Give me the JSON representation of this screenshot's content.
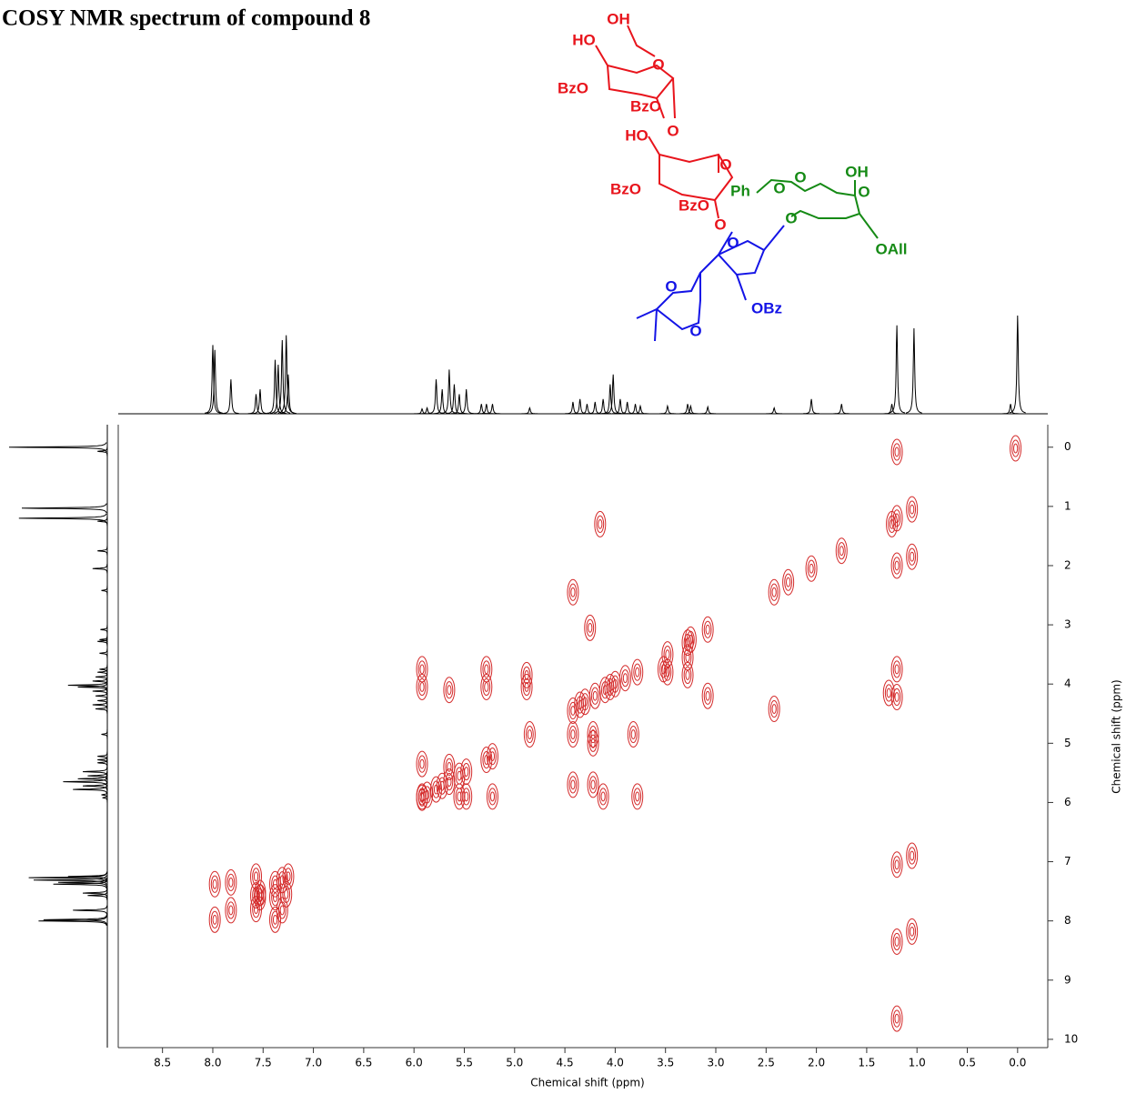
{
  "title": "COSY NMR spectrum of compound 8",
  "structure": {
    "labels": [
      {
        "text": "OH",
        "color": "#e8141c"
      },
      {
        "text": "HO",
        "color": "#e8141c"
      },
      {
        "text": "O",
        "color": "#e8141c"
      },
      {
        "text": "BzO",
        "color": "#e8141c"
      },
      {
        "text": "BzO",
        "color": "#e8141c"
      },
      {
        "text": "O",
        "color": "#e8141c"
      },
      {
        "text": "HO",
        "color": "#e8141c"
      },
      {
        "text": "O",
        "color": "#e8141c"
      },
      {
        "text": "BzO",
        "color": "#e8141c"
      },
      {
        "text": "BzO",
        "color": "#e8141c"
      },
      {
        "text": "O",
        "color": "#e8141c"
      },
      {
        "text": "Ph",
        "color": "#158a15"
      },
      {
        "text": "O",
        "color": "#158a15"
      },
      {
        "text": "O",
        "color": "#158a15"
      },
      {
        "text": "OH",
        "color": "#158a15"
      },
      {
        "text": "O",
        "color": "#158a15"
      },
      {
        "text": "O",
        "color": "#158a15"
      },
      {
        "text": "OAll",
        "color": "#158a15"
      },
      {
        "text": "O",
        "color": "#1414e6"
      },
      {
        "text": "O",
        "color": "#1414e6"
      },
      {
        "text": "O",
        "color": "#1414e6"
      },
      {
        "text": "OBz",
        "color": "#1414e6"
      }
    ]
  },
  "chart_data": [
    {
      "type": "spectrum",
      "color": "#000000",
      "ylim": [
        0,
        100
      ],
      "x": [
        8.0,
        7.98,
        7.82,
        7.57,
        7.53,
        7.38,
        7.35,
        7.31,
        7.27,
        7.25,
        5.92,
        5.87,
        5.78,
        5.72,
        5.65,
        5.6,
        5.55,
        5.48,
        5.33,
        5.28,
        5.22,
        4.85,
        4.42,
        4.35,
        4.28,
        4.2,
        4.12,
        4.05,
        4.02,
        3.95,
        3.88,
        3.8,
        3.75,
        3.48,
        3.28,
        3.25,
        3.08,
        2.42,
        2.05,
        1.75,
        1.25,
        1.2,
        1.03,
        0.07,
        0.0
      ],
      "values": [
        70,
        65,
        35,
        20,
        25,
        55,
        50,
        75,
        80,
        40,
        5,
        6,
        35,
        25,
        45,
        30,
        20,
        25,
        10,
        10,
        10,
        6,
        12,
        15,
        10,
        12,
        15,
        30,
        40,
        15,
        12,
        10,
        8,
        8,
        10,
        8,
        7,
        6,
        15,
        10,
        10,
        90,
        87,
        10,
        100
      ]
    },
    {
      "type": "scatter",
      "color": "#d42a2a",
      "xlabel": "Chemical shift (ppm)",
      "ylabel": "Chemical shift (ppm)",
      "xlim": [
        8.94,
        -0.3
      ],
      "ylim": [
        -0.38,
        10.14
      ],
      "xticks": [
        8.5,
        {
          "value": 8,
          "label": "8.0"
        },
        7.5,
        {
          "value": 7,
          "label": "7.0"
        },
        6.5,
        {
          "value": 6,
          "label": "6.0"
        },
        5.5,
        {
          "value": 5,
          "label": "5.0"
        },
        4.5,
        {
          "value": 4,
          "label": "4.0"
        },
        3.5,
        {
          "value": 3,
          "label": "3.0"
        },
        2.5,
        {
          "value": 2,
          "label": "2.0"
        },
        1.5,
        {
          "value": 1,
          "label": "1.0"
        },
        0.5,
        {
          "value": 0,
          "label": "0.0"
        }
      ],
      "yticks": [
        0,
        1,
        2,
        3,
        4,
        5,
        6,
        7,
        8,
        9,
        10
      ],
      "x": [
        0.02,
        1.2,
        1.05,
        1.25,
        1.75,
        2.05,
        2.28,
        2.42,
        3.08,
        3.25,
        3.28,
        3.48,
        3.78,
        3.9,
        4.0,
        4.05,
        4.1,
        4.2,
        4.3,
        4.35,
        4.42,
        4.85,
        5.22,
        5.28,
        5.48,
        5.55,
        5.65,
        5.72,
        5.78,
        5.87,
        5.92,
        7.25,
        7.31,
        7.38,
        7.53,
        7.57,
        7.82,
        7.98,
        1.2,
        4.15,
        4.42,
        2.42,
        4.25,
        5.92,
        5.92,
        5.65,
        5.28,
        5.28,
        4.88,
        4.88,
        3.52,
        3.48,
        3.28,
        3.28,
        3.08,
        4.42,
        4.22,
        4.22,
        3.82,
        5.92,
        5.92,
        5.65,
        5.55,
        5.22,
        5.48,
        4.42,
        4.22,
        4.12,
        3.78,
        7.98,
        7.82,
        7.57,
        7.57,
        7.53,
        7.38,
        7.38,
        7.31,
        7.27,
        1.28,
        1.2,
        1.2,
        1.2,
        1.05,
        1.05,
        1.2,
        1.2,
        1.2,
        1.05
      ],
      "y": [
        0.02,
        1.2,
        1.05,
        1.3,
        1.75,
        2.05,
        2.28,
        2.45,
        3.08,
        3.25,
        3.3,
        3.5,
        3.8,
        3.9,
        4.0,
        4.05,
        4.1,
        4.2,
        4.3,
        4.35,
        4.45,
        4.85,
        5.22,
        5.28,
        5.48,
        5.55,
        5.65,
        5.72,
        5.78,
        5.87,
        5.92,
        7.25,
        7.31,
        7.38,
        7.53,
        7.57,
        7.82,
        7.98,
        0.08,
        1.3,
        2.45,
        4.42,
        3.05,
        3.75,
        4.05,
        4.1,
        3.75,
        4.05,
        3.85,
        4.05,
        3.75,
        3.8,
        3.55,
        3.85,
        4.2,
        4.85,
        4.85,
        5.0,
        4.85,
        5.35,
        5.9,
        5.4,
        5.9,
        5.9,
        5.9,
        5.7,
        5.7,
        5.9,
        5.9,
        7.38,
        7.35,
        7.25,
        7.8,
        7.6,
        7.98,
        7.6,
        7.82,
        7.55,
        4.15,
        3.75,
        4.22,
        7.05,
        6.9,
        8.18,
        8.35,
        9.65,
        2.0,
        1.85
      ]
    }
  ]
}
